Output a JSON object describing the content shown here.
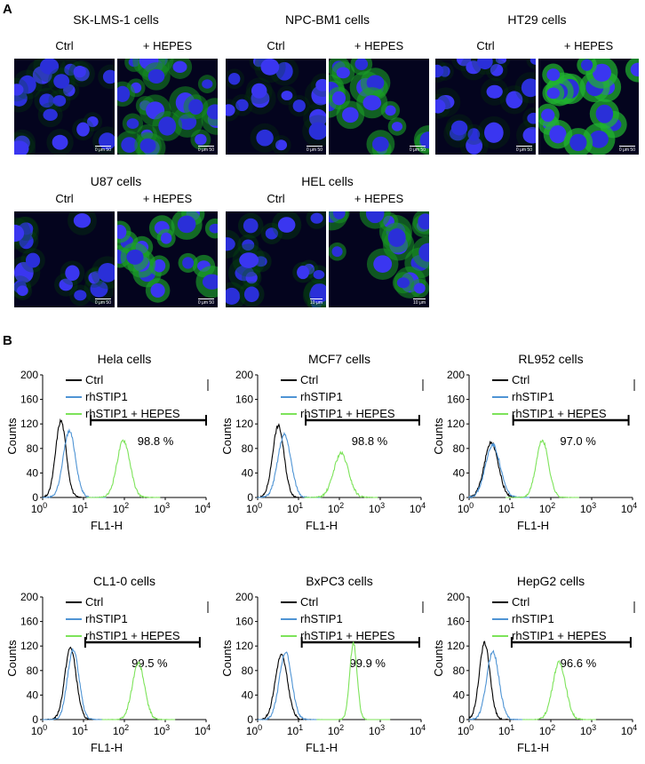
{
  "panel_a": {
    "letter": "A",
    "groups": [
      {
        "title": "SK-LMS-1 cells",
        "ctrl_label": "Ctrl",
        "treat_label": "+ HEPES",
        "ctrl_green": 0.12,
        "treat_green": 0.55,
        "scale_text": "0   μm   50"
      },
      {
        "title": "NPC-BM1 cells",
        "ctrl_label": "Ctrl",
        "treat_label": "+ HEPES",
        "ctrl_green": 0.1,
        "treat_green": 0.65,
        "scale_text": "0   μm   50"
      },
      {
        "title": "HT29 cells",
        "ctrl_label": "Ctrl",
        "treat_label": "+ HEPES",
        "ctrl_green": 0.08,
        "treat_green": 0.8,
        "scale_text": "0   μm   50"
      },
      {
        "title": "U87 cells",
        "ctrl_label": "Ctrl",
        "treat_label": "+ HEPES",
        "ctrl_green": 0.15,
        "treat_green": 0.7,
        "scale_text": "0   μm   50"
      },
      {
        "title": "HEL cells",
        "ctrl_label": "Ctrl",
        "treat_label": "+ HEPES",
        "ctrl_green": 0.2,
        "treat_green": 0.6,
        "scale_text": "10 μm"
      }
    ]
  },
  "panel_b": {
    "letter": "B",
    "colors": {
      "ctrl": "#000000",
      "rhstip1": "#4f94d4",
      "rhstip1_hepes": "#7de35a"
    },
    "legend": [
      "Ctrl",
      "rhSTIP1",
      "rhSTIP1 + HEPES"
    ],
    "ylabel": "Counts",
    "xlabel": "FL1-H",
    "yticks": [
      "0",
      "40",
      "80",
      "120",
      "160",
      "200"
    ],
    "xtick_base": "10",
    "xtick_exps": [
      "0",
      "1",
      "2",
      "3",
      "4"
    ]
  },
  "chart_data": [
    {
      "type": "line",
      "title": "Hela cells",
      "percent": "98.8 %",
      "xscale": "log",
      "xlim": [
        1,
        10000
      ],
      "ylim": [
        0,
        200
      ],
      "gate": [
        15,
        10000
      ],
      "series": [
        {
          "name": "Ctrl",
          "peak_x": 2.8,
          "peak_y": 125,
          "width": 0.13
        },
        {
          "name": "rhSTIP1",
          "peak_x": 4.5,
          "peak_y": 108,
          "width": 0.15
        },
        {
          "name": "rhSTIP1 + HEPES",
          "peak_x": 95,
          "peak_y": 93,
          "width": 0.16
        }
      ]
    },
    {
      "type": "line",
      "title": "MCF7  cells",
      "percent": "98.8 %",
      "xscale": "log",
      "xlim": [
        1,
        10000
      ],
      "ylim": [
        0,
        200
      ],
      "gate": [
        15,
        9000
      ],
      "series": [
        {
          "name": "Ctrl",
          "peak_x": 3.2,
          "peak_y": 117,
          "width": 0.14
        },
        {
          "name": "rhSTIP1",
          "peak_x": 4.5,
          "peak_y": 102,
          "width": 0.16
        },
        {
          "name": "rhSTIP1 + HEPES",
          "peak_x": 110,
          "peak_y": 72,
          "width": 0.18
        }
      ]
    },
    {
      "type": "line",
      "title": "RL952  cells",
      "percent": "97.0 %",
      "xscale": "log",
      "xlim": [
        1,
        10000
      ],
      "ylim": [
        0,
        200
      ],
      "gate": [
        12,
        8000
      ],
      "series": [
        {
          "name": "Ctrl",
          "peak_x": 3.5,
          "peak_y": 90,
          "width": 0.17
        },
        {
          "name": "rhSTIP1",
          "peak_x": 3.8,
          "peak_y": 86,
          "width": 0.18
        },
        {
          "name": "rhSTIP1 + HEPES",
          "peak_x": 62,
          "peak_y": 93,
          "width": 0.15
        }
      ]
    },
    {
      "type": "line",
      "title": "CL1-0 cells",
      "percent": "99.5 %",
      "xscale": "log",
      "xlim": [
        1,
        10000
      ],
      "ylim": [
        0,
        200
      ],
      "gate": [
        11,
        7000
      ],
      "series": [
        {
          "name": "Ctrl",
          "peak_x": 4.8,
          "peak_y": 117,
          "width": 0.14
        },
        {
          "name": "rhSTIP1",
          "peak_x": 5.6,
          "peak_y": 114,
          "width": 0.14
        },
        {
          "name": "rhSTIP1 + HEPES",
          "peak_x": 220,
          "peak_y": 92,
          "width": 0.15
        }
      ]
    },
    {
      "type": "line",
      "title": "BxPC3 cells",
      "percent": "99.9 %",
      "xscale": "log",
      "xlim": [
        1,
        10000
      ],
      "ylim": [
        0,
        200
      ],
      "gate": [
        12,
        9000
      ],
      "series": [
        {
          "name": "Ctrl",
          "peak_x": 3.8,
          "peak_y": 105,
          "width": 0.15
        },
        {
          "name": "rhSTIP1",
          "peak_x": 4.8,
          "peak_y": 110,
          "width": 0.15
        },
        {
          "name": "rhSTIP1 + HEPES",
          "peak_x": 220,
          "peak_y": 125,
          "width": 0.09
        }
      ]
    },
    {
      "type": "line",
      "title": "HepG2 cells",
      "percent": "96.6 %",
      "xscale": "log",
      "xlim": [
        1,
        10000
      ],
      "ylim": [
        0,
        200
      ],
      "gate": [
        11,
        9000
      ],
      "series": [
        {
          "name": "Ctrl",
          "peak_x": 2.4,
          "peak_y": 125,
          "width": 0.13
        },
        {
          "name": "rhSTIP1",
          "peak_x": 3.8,
          "peak_y": 111,
          "width": 0.15
        },
        {
          "name": "rhSTIP1 + HEPES",
          "peak_x": 160,
          "peak_y": 93,
          "width": 0.16
        }
      ]
    }
  ]
}
